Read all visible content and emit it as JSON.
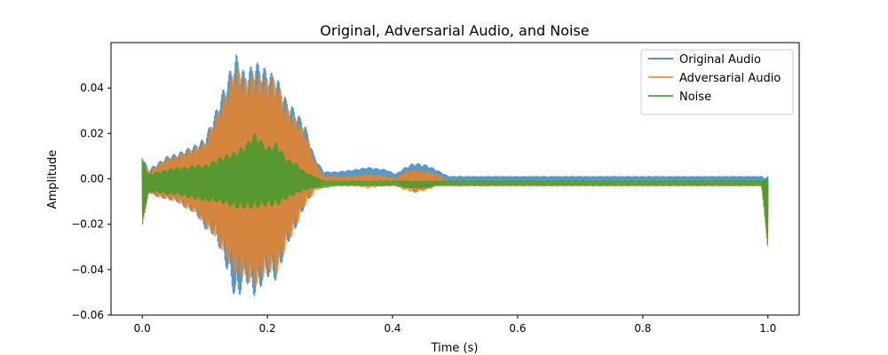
{
  "chart_data": {
    "type": "line",
    "title": "Original, Adversarial Audio, and Noise",
    "xlabel": "Time (s)",
    "ylabel": "Amplitude",
    "xlim": [
      -0.05,
      1.05
    ],
    "ylim": [
      -0.06,
      0.06
    ],
    "x_ticks": [
      0.0,
      0.2,
      0.4,
      0.6,
      0.8,
      1.0
    ],
    "x_tick_labels": [
      "0.0",
      "0.2",
      "0.4",
      "0.6",
      "0.8",
      "1.0"
    ],
    "y_ticks": [
      -0.06,
      -0.04,
      -0.02,
      0.0,
      0.02,
      0.04
    ],
    "y_tick_labels": [
      "−0.06",
      "−0.04",
      "−0.02",
      "0.00",
      "0.02",
      "0.04"
    ],
    "grid": false,
    "legend_position": "top-right",
    "series": [
      {
        "name": "Original Audio",
        "color": "#1f77b4",
        "envelope": [
          {
            "t": 0.0,
            "max": 0.01,
            "min": -0.021
          },
          {
            "t": 0.01,
            "max": 0.004,
            "min": -0.006
          },
          {
            "t": 0.025,
            "max": 0.007,
            "min": -0.008
          },
          {
            "t": 0.04,
            "max": 0.01,
            "min": -0.009
          },
          {
            "t": 0.055,
            "max": 0.011,
            "min": -0.01
          },
          {
            "t": 0.07,
            "max": 0.013,
            "min": -0.013
          },
          {
            "t": 0.085,
            "max": 0.015,
            "min": -0.015
          },
          {
            "t": 0.1,
            "max": 0.018,
            "min": -0.022
          },
          {
            "t": 0.115,
            "max": 0.028,
            "min": -0.025
          },
          {
            "t": 0.13,
            "max": 0.04,
            "min": -0.035
          },
          {
            "t": 0.15,
            "max": 0.055,
            "min": -0.055
          },
          {
            "t": 0.165,
            "max": 0.046,
            "min": -0.045
          },
          {
            "t": 0.18,
            "max": 0.052,
            "min": -0.052
          },
          {
            "t": 0.2,
            "max": 0.048,
            "min": -0.043
          },
          {
            "t": 0.215,
            "max": 0.045,
            "min": -0.045
          },
          {
            "t": 0.23,
            "max": 0.035,
            "min": -0.03
          },
          {
            "t": 0.245,
            "max": 0.03,
            "min": -0.022
          },
          {
            "t": 0.26,
            "max": 0.024,
            "min": -0.012
          },
          {
            "t": 0.275,
            "max": 0.01,
            "min": -0.005
          },
          {
            "t": 0.29,
            "max": 0.003,
            "min": -0.001
          },
          {
            "t": 0.31,
            "max": 0.003,
            "min": -0.001
          },
          {
            "t": 0.34,
            "max": 0.004,
            "min": -0.001
          },
          {
            "t": 0.36,
            "max": 0.005,
            "min": -0.001
          },
          {
            "t": 0.39,
            "max": 0.004,
            "min": -0.001
          },
          {
            "t": 0.405,
            "max": 0.002,
            "min": -0.001
          },
          {
            "t": 0.42,
            "max": 0.005,
            "min": -0.003
          },
          {
            "t": 0.435,
            "max": 0.007,
            "min": -0.006
          },
          {
            "t": 0.455,
            "max": 0.006,
            "min": -0.004
          },
          {
            "t": 0.47,
            "max": 0.004,
            "min": -0.002
          },
          {
            "t": 0.49,
            "max": 0.001,
            "min": -0.001
          },
          {
            "t": 0.7,
            "max": 0.001,
            "min": -0.001
          },
          {
            "t": 0.99,
            "max": 0.001,
            "min": -0.001
          },
          {
            "t": 1.0,
            "max": 0.001,
            "min": -0.031
          }
        ]
      },
      {
        "name": "Adversarial Audio",
        "color": "#ff7f0e",
        "envelope": [
          {
            "t": 0.0,
            "max": 0.01,
            "min": -0.02
          },
          {
            "t": 0.01,
            "max": 0.003,
            "min": -0.006
          },
          {
            "t": 0.025,
            "max": 0.006,
            "min": -0.008
          },
          {
            "t": 0.04,
            "max": 0.009,
            "min": -0.009
          },
          {
            "t": 0.055,
            "max": 0.01,
            "min": -0.01
          },
          {
            "t": 0.07,
            "max": 0.012,
            "min": -0.013
          },
          {
            "t": 0.085,
            "max": 0.014,
            "min": -0.015
          },
          {
            "t": 0.1,
            "max": 0.016,
            "min": -0.021
          },
          {
            "t": 0.115,
            "max": 0.026,
            "min": -0.025
          },
          {
            "t": 0.13,
            "max": 0.035,
            "min": -0.033
          },
          {
            "t": 0.15,
            "max": 0.05,
            "min": -0.043
          },
          {
            "t": 0.165,
            "max": 0.044,
            "min": -0.044
          },
          {
            "t": 0.18,
            "max": 0.047,
            "min": -0.048
          },
          {
            "t": 0.2,
            "max": 0.044,
            "min": -0.041
          },
          {
            "t": 0.215,
            "max": 0.044,
            "min": -0.042
          },
          {
            "t": 0.23,
            "max": 0.032,
            "min": -0.03
          },
          {
            "t": 0.245,
            "max": 0.027,
            "min": -0.022
          },
          {
            "t": 0.26,
            "max": 0.021,
            "min": -0.012
          },
          {
            "t": 0.275,
            "max": 0.008,
            "min": -0.006
          },
          {
            "t": 0.29,
            "max": 0.001,
            "min": -0.003
          },
          {
            "t": 0.31,
            "max": 0.001,
            "min": -0.003
          },
          {
            "t": 0.34,
            "max": 0.001,
            "min": -0.003
          },
          {
            "t": 0.36,
            "max": 0.002,
            "min": -0.004
          },
          {
            "t": 0.39,
            "max": 0.001,
            "min": -0.003
          },
          {
            "t": 0.405,
            "max": 0.0,
            "min": -0.003
          },
          {
            "t": 0.42,
            "max": 0.003,
            "min": -0.005
          },
          {
            "t": 0.435,
            "max": 0.004,
            "min": -0.006
          },
          {
            "t": 0.455,
            "max": 0.003,
            "min": -0.005
          },
          {
            "t": 0.47,
            "max": 0.002,
            "min": -0.003
          },
          {
            "t": 0.49,
            "max": -0.001,
            "min": -0.003
          },
          {
            "t": 0.7,
            "max": -0.001,
            "min": -0.003
          },
          {
            "t": 0.99,
            "max": -0.001,
            "min": -0.003
          },
          {
            "t": 1.0,
            "max": -0.001,
            "min": -0.032
          }
        ]
      },
      {
        "name": "Noise",
        "color": "#2ca02c",
        "envelope": [
          {
            "t": 0.0,
            "max": 0.009,
            "min": -0.021
          },
          {
            "t": 0.01,
            "max": 0.002,
            "min": -0.006
          },
          {
            "t": 0.025,
            "max": 0.003,
            "min": -0.006
          },
          {
            "t": 0.04,
            "max": 0.004,
            "min": -0.007
          },
          {
            "t": 0.055,
            "max": 0.005,
            "min": -0.007
          },
          {
            "t": 0.07,
            "max": 0.005,
            "min": -0.008
          },
          {
            "t": 0.085,
            "max": 0.006,
            "min": -0.009
          },
          {
            "t": 0.1,
            "max": 0.006,
            "min": -0.01
          },
          {
            "t": 0.115,
            "max": 0.008,
            "min": -0.01
          },
          {
            "t": 0.13,
            "max": 0.01,
            "min": -0.011
          },
          {
            "t": 0.15,
            "max": 0.012,
            "min": -0.013
          },
          {
            "t": 0.165,
            "max": 0.015,
            "min": -0.013
          },
          {
            "t": 0.18,
            "max": 0.02,
            "min": -0.013
          },
          {
            "t": 0.2,
            "max": 0.014,
            "min": -0.012
          },
          {
            "t": 0.215,
            "max": 0.016,
            "min": -0.012
          },
          {
            "t": 0.23,
            "max": 0.009,
            "min": -0.009
          },
          {
            "t": 0.245,
            "max": 0.007,
            "min": -0.007
          },
          {
            "t": 0.26,
            "max": 0.003,
            "min": -0.005
          },
          {
            "t": 0.275,
            "max": 0.001,
            "min": -0.004
          },
          {
            "t": 0.29,
            "max": -0.001,
            "min": -0.004
          },
          {
            "t": 0.31,
            "max": -0.001,
            "min": -0.003
          },
          {
            "t": 0.34,
            "max": -0.001,
            "min": -0.003
          },
          {
            "t": 0.36,
            "max": -0.001,
            "min": -0.003
          },
          {
            "t": 0.39,
            "max": -0.001,
            "min": -0.003
          },
          {
            "t": 0.405,
            "max": -0.001,
            "min": -0.003
          },
          {
            "t": 0.42,
            "max": -0.001,
            "min": -0.004
          },
          {
            "t": 0.435,
            "max": -0.001,
            "min": -0.004
          },
          {
            "t": 0.455,
            "max": -0.001,
            "min": -0.004
          },
          {
            "t": 0.47,
            "max": -0.001,
            "min": -0.003
          },
          {
            "t": 0.49,
            "max": -0.001,
            "min": -0.003
          },
          {
            "t": 0.7,
            "max": -0.001,
            "min": -0.003
          },
          {
            "t": 0.99,
            "max": -0.001,
            "min": -0.003
          },
          {
            "t": 1.0,
            "max": 0.001,
            "min": -0.031
          }
        ]
      }
    ]
  }
}
